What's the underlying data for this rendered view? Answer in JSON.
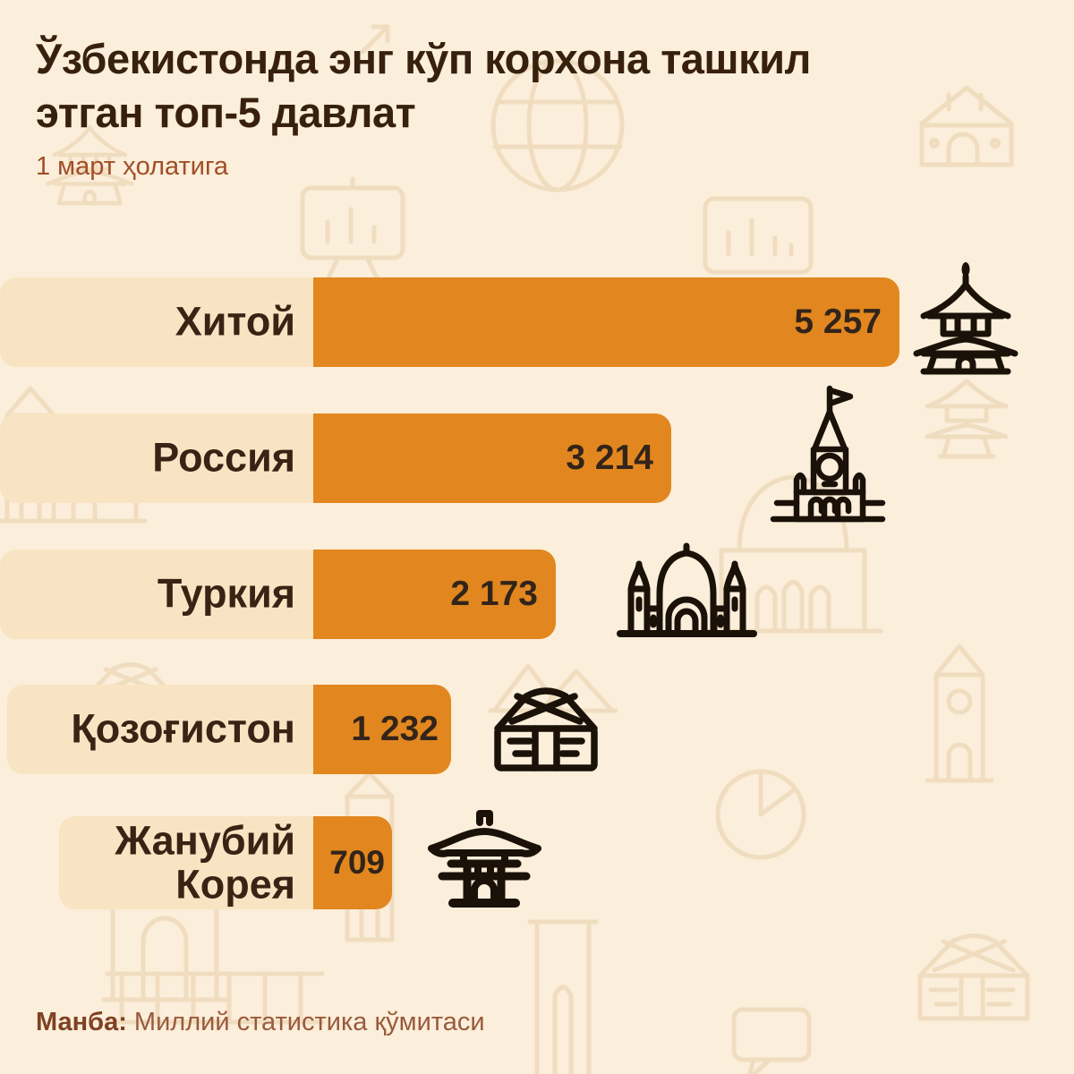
{
  "title": "Ўзбекистонда энг кўп корхона ташкил этган топ-5 давлат",
  "subtitle": "1 март ҳолатига",
  "source": {
    "label": "Манба:",
    "text": "Миллий статистика қўмитаси"
  },
  "colors": {
    "background": "#fbeeda",
    "row_band": "#f8e4c3",
    "bar": "#e2871f",
    "title_text": "#38200f",
    "subtitle_text": "#a04e28",
    "label_text": "#3a2314",
    "value_text": "#33241a",
    "source_label_text": "#7e4123",
    "source_text": "#9a5a3c",
    "building_icon": "#1a1108",
    "pattern_stroke": "#b9853e"
  },
  "chart_data": {
    "type": "bar",
    "orientation": "horizontal",
    "title": "Ўзбекистонда энг кўп корхона ташкил этган топ-5 давлат",
    "subtitle": "1 март ҳолатига",
    "source": "Манба: Миллий статистика қўмитаси",
    "categories": [
      "Хитой",
      "Россия",
      "Туркия",
      "Қозоғистон",
      "Жанубий Корея"
    ],
    "values": [
      5257,
      3214,
      2173,
      1232,
      709
    ],
    "value_labels": [
      "5 257",
      "3 214",
      "2 173",
      "1 232",
      "709"
    ],
    "row_icons": [
      "pagoda-icon",
      "kremlin-tower-icon",
      "mosque-icon",
      "yurt-icon",
      "korean-gate-icon"
    ],
    "xlim": [
      0,
      5257
    ],
    "grid": false,
    "legend": "none"
  },
  "background_icons": [
    "globe-icon",
    "arrow-icon",
    "gatehouse-icon",
    "pagoda-outline-icon",
    "presentation-chart-icon",
    "bar-chart-icon",
    "fortress-icon",
    "mosque-outline-icon",
    "small-pagoda-icon",
    "yurt-outline-icon",
    "mountains-icon",
    "pie-chart-icon",
    "clock-tower-icon",
    "dome-portal-icon",
    "slim-tower-icon",
    "minaret-icon",
    "colonnade-icon",
    "speech-bubble-icon",
    "yurt-corner-icon"
  ]
}
